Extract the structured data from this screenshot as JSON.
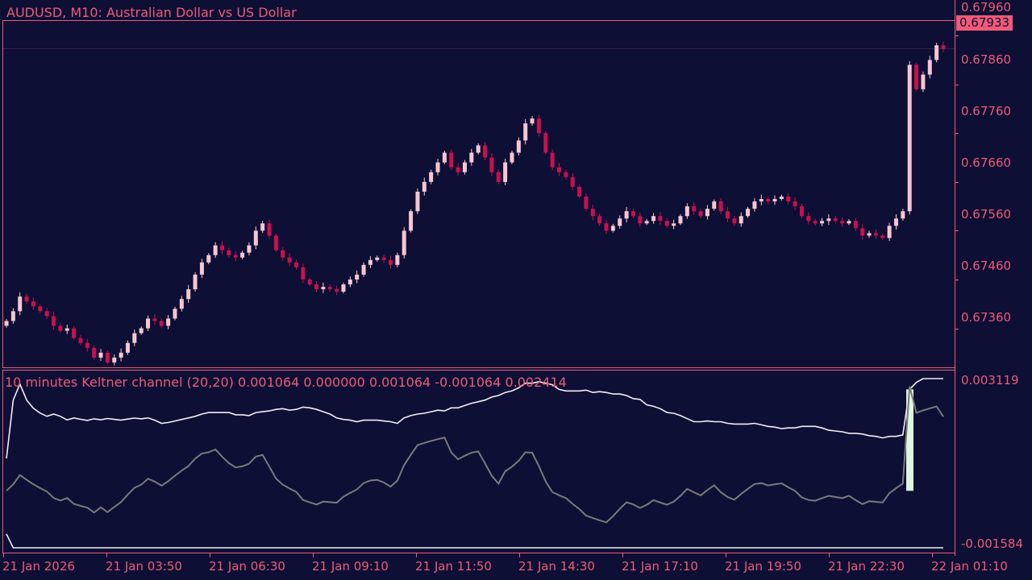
{
  "header": {
    "symbol_title": "AUDUSD, M10:  Australian Dollar vs US Dollar",
    "indicator_title": "10 minutes Keltner channel (20,20) 0.001064 0.000000 0.001064 -0.001064 0.002414"
  },
  "price_axis": {
    "labels": [
      "0.67960",
      "0.67860",
      "0.67760",
      "0.67660",
      "0.67560",
      "0.67460",
      "0.67360"
    ],
    "current_price": "0.67933"
  },
  "indicator_axis": {
    "top_label": "0.003119",
    "bottom_label": "-0.001584"
  },
  "time_axis": {
    "labels": [
      "21 Jan 2026",
      "21 Jan 03:50",
      "21 Jan 06:30",
      "21 Jan 09:10",
      "21 Jan 11:50",
      "21 Jan 14:30",
      "21 Jan 17:10",
      "21 Jan 19:50",
      "21 Jan 22:30",
      "22 Jan 01:10"
    ]
  },
  "colors": {
    "background": "#0d0f35",
    "axis": "#f05a78",
    "bull_candle": "#f7c6d2",
    "bear_candle": "#c8104f",
    "histogram": "#dff7df",
    "band_line": "#f4eef4",
    "oscillator_line": "#7a7a7a"
  },
  "chart_data": [
    {
      "type": "candlestick",
      "symbol": "AUDUSD",
      "timeframe": "M10",
      "ylim": [
        0.6728,
        0.6799
      ],
      "ticks": [
        0.6736,
        0.6746,
        0.6756,
        0.6766,
        0.6776,
        0.6786,
        0.6796
      ],
      "current_price": 0.67933,
      "close": [
        0.67375,
        0.67395,
        0.67425,
        0.67415,
        0.67405,
        0.67395,
        0.67385,
        0.67365,
        0.67355,
        0.6736,
        0.6734,
        0.6733,
        0.6732,
        0.673,
        0.6731,
        0.6729,
        0.673,
        0.6731,
        0.6733,
        0.6735,
        0.6736,
        0.6738,
        0.67375,
        0.67365,
        0.6738,
        0.674,
        0.6742,
        0.6744,
        0.6747,
        0.67495,
        0.6751,
        0.6753,
        0.6752,
        0.6751,
        0.67505,
        0.67515,
        0.6753,
        0.6756,
        0.67575,
        0.6755,
        0.6752,
        0.67505,
        0.67495,
        0.67485,
        0.6746,
        0.6745,
        0.6744,
        0.67445,
        0.6744,
        0.67435,
        0.6745,
        0.6746,
        0.6747,
        0.6749,
        0.675,
        0.67505,
        0.675,
        0.6749,
        0.6751,
        0.6756,
        0.676,
        0.6764,
        0.6766,
        0.6768,
        0.677,
        0.6772,
        0.6769,
        0.6768,
        0.677,
        0.6772,
        0.67735,
        0.6771,
        0.6768,
        0.6766,
        0.677,
        0.6772,
        0.67745,
        0.6778,
        0.6779,
        0.6776,
        0.6772,
        0.6769,
        0.6768,
        0.6767,
        0.6765,
        0.6763,
        0.67605,
        0.6759,
        0.67575,
        0.6756,
        0.6757,
        0.67585,
        0.676,
        0.6759,
        0.67575,
        0.6758,
        0.6759,
        0.6758,
        0.6757,
        0.67575,
        0.6759,
        0.6761,
        0.676,
        0.6759,
        0.67605,
        0.6762,
        0.676,
        0.67585,
        0.67575,
        0.6759,
        0.67605,
        0.6762,
        0.67625,
        0.6762,
        0.67625,
        0.6763,
        0.6762,
        0.6761,
        0.6759,
        0.6758,
        0.67575,
        0.6758,
        0.67585,
        0.6758,
        0.67575,
        0.6758,
        0.67565,
        0.6755,
        0.67555,
        0.6755,
        0.67545,
        0.6757,
        0.67585,
        0.676,
        0.679,
        0.6785,
        0.6788,
        0.6791,
        0.6794,
        0.67933
      ]
    },
    {
      "type": "keltner_channel",
      "name": "10 minutes Keltner channel (20,20)",
      "values": [
        0.001064,
        0.0,
        0.001064,
        -0.001064,
        0.002414
      ],
      "ylim": [
        -0.001584,
        0.003119
      ]
    }
  ]
}
